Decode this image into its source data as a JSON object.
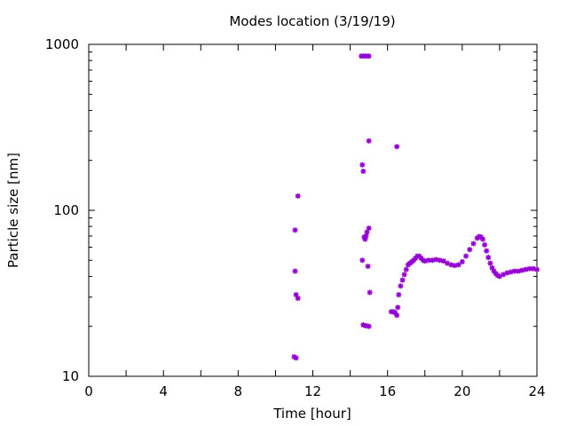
{
  "chart_data": {
    "type": "scatter",
    "title": "Modes location (3/19/19)",
    "xlabel": "Time [hour]",
    "ylabel": "Particle size [nm]",
    "xlim": [
      0,
      24
    ],
    "ylim": [
      10,
      1000
    ],
    "yscale": "log",
    "x_ticks": [
      0,
      4,
      8,
      12,
      16,
      20,
      24
    ],
    "x_tick_labels": [
      "0",
      "4",
      "8",
      "12",
      "16",
      "20",
      "24"
    ],
    "y_ticks": [
      10,
      100,
      1000
    ],
    "y_tick_labels": [
      "10",
      "100",
      "1000"
    ],
    "grid": false,
    "marker_color": "#9400d3",
    "series": [
      {
        "points": [
          [
            11.0,
            13.1
          ],
          [
            11.1,
            12.9
          ],
          [
            11.05,
            43
          ],
          [
            11.05,
            76
          ],
          [
            11.1,
            31
          ],
          [
            11.2,
            29.5
          ],
          [
            11.2,
            122
          ],
          [
            14.6,
            850
          ],
          [
            14.7,
            850
          ],
          [
            14.8,
            850
          ],
          [
            14.9,
            850
          ],
          [
            15.0,
            850
          ],
          [
            14.65,
            188
          ],
          [
            14.7,
            172
          ],
          [
            15.0,
            262
          ],
          [
            16.5,
            242
          ],
          [
            14.65,
            50
          ],
          [
            14.75,
            69
          ],
          [
            14.8,
            67
          ],
          [
            14.85,
            70
          ],
          [
            14.9,
            74
          ],
          [
            15.0,
            78
          ],
          [
            14.95,
            46
          ],
          [
            15.05,
            32
          ],
          [
            14.7,
            20.4
          ],
          [
            14.8,
            20.2
          ],
          [
            14.9,
            20.1
          ],
          [
            15.0,
            20.0
          ],
          [
            16.2,
            24.5
          ],
          [
            16.3,
            24.5
          ],
          [
            16.4,
            24.2
          ],
          [
            16.5,
            23.3
          ],
          [
            16.55,
            26
          ],
          [
            16.6,
            31
          ],
          [
            16.7,
            35
          ],
          [
            16.8,
            38
          ],
          [
            16.9,
            41
          ],
          [
            17.0,
            44
          ],
          [
            17.1,
            47
          ],
          [
            17.2,
            48
          ],
          [
            17.3,
            49
          ],
          [
            17.4,
            50
          ],
          [
            17.5,
            51.5
          ],
          [
            17.6,
            53
          ],
          [
            17.7,
            53
          ],
          [
            17.8,
            51.5
          ],
          [
            17.9,
            50
          ],
          [
            18.0,
            49.5
          ],
          [
            18.2,
            50
          ],
          [
            18.4,
            50
          ],
          [
            18.6,
            50.5
          ],
          [
            18.8,
            50
          ],
          [
            19.0,
            49.5
          ],
          [
            19.2,
            48
          ],
          [
            19.4,
            47
          ],
          [
            19.6,
            46.5
          ],
          [
            19.8,
            47
          ],
          [
            20.0,
            49
          ],
          [
            20.2,
            53
          ],
          [
            20.4,
            58
          ],
          [
            20.6,
            63
          ],
          [
            20.8,
            68
          ],
          [
            20.9,
            69.5
          ],
          [
            21.0,
            69
          ],
          [
            21.1,
            67
          ],
          [
            21.2,
            62
          ],
          [
            21.3,
            57
          ],
          [
            21.4,
            52
          ],
          [
            21.5,
            48
          ],
          [
            21.6,
            45
          ],
          [
            21.7,
            43
          ],
          [
            21.8,
            41.5
          ],
          [
            21.9,
            40.5
          ],
          [
            22.0,
            40
          ],
          [
            22.2,
            41
          ],
          [
            22.4,
            42
          ],
          [
            22.6,
            42.5
          ],
          [
            22.8,
            43
          ],
          [
            23.0,
            43
          ],
          [
            23.2,
            43.5
          ],
          [
            23.4,
            44
          ],
          [
            23.6,
            44.5
          ],
          [
            23.8,
            44.5
          ],
          [
            24.0,
            44
          ]
        ]
      }
    ]
  }
}
